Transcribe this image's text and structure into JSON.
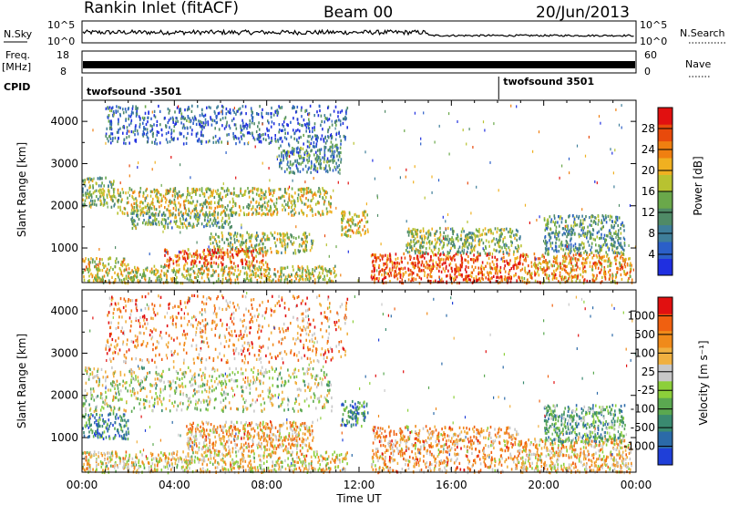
{
  "header": {
    "station": "Rankin Inlet (fitACF)",
    "beam": "Beam 00",
    "date": "20/Jun/2013"
  },
  "strips": {
    "nsky": {
      "label": "N.Sky",
      "ticks": [
        "10^5",
        "10^0"
      ],
      "right_label": "N.Search",
      "right_ticks": [
        "10^5",
        "10^0"
      ]
    },
    "freq": {
      "label_top": "Freq.",
      "label_bottom": "[MHz]",
      "ticks": [
        "18",
        "8"
      ],
      "right_label": "Nave",
      "right_ticks": [
        "60",
        "0"
      ]
    },
    "cpid": {
      "label": "CPID",
      "programs": [
        {
          "name": "twofsound -3501",
          "start_hour": 0.0
        },
        {
          "name": "twofsound 3501",
          "start_hour": 18.05
        }
      ]
    }
  },
  "x_axis": {
    "label": "Time UT",
    "range_hours": [
      0,
      24
    ],
    "tick_labels": [
      "00:00",
      "04:00",
      "08:00",
      "12:00",
      "16:00",
      "20:00",
      "00:00"
    ]
  },
  "chart_data": [
    {
      "type": "heatmap",
      "name": "power",
      "ylabel": "Slant Range [km]",
      "ylim": [
        180,
        4500
      ],
      "y_ticks": [
        1000,
        2000,
        3000,
        4000
      ],
      "colorbar_label": "Power [dB]",
      "colorbar_ticks": [
        "4",
        "8",
        "12",
        "16",
        "20",
        "24",
        "28"
      ],
      "colorbar_colors": [
        "#1f2fe0",
        "#2b5fc8",
        "#3e7e9a",
        "#4f8a66",
        "#6aa84a",
        "#b8c230",
        "#f0b020",
        "#f07f10",
        "#e84a0c",
        "#e11010"
      ],
      "regions": [
        {
          "hours": [
            0.0,
            1.4
          ],
          "range_km": [
            2000,
            2700
          ],
          "level": 0.45
        },
        {
          "hours": [
            1.5,
            10.8
          ],
          "range_km": [
            1800,
            2450
          ],
          "level": 0.55
        },
        {
          "hours": [
            2.0,
            6.5
          ],
          "range_km": [
            1500,
            1850
          ],
          "level": 0.4
        },
        {
          "hours": [
            5.5,
            10.0
          ],
          "range_km": [
            900,
            1400
          ],
          "level": 0.5
        },
        {
          "hours": [
            3.5,
            8.0
          ],
          "range_km": [
            600,
            1000
          ],
          "level": 0.8
        },
        {
          "hours": [
            0.0,
            2.0
          ],
          "range_km": [
            200,
            800
          ],
          "level": 0.6
        },
        {
          "hours": [
            2.0,
            11.0
          ],
          "range_km": [
            200,
            600
          ],
          "level": 0.55
        },
        {
          "hours": [
            11.2,
            12.4
          ],
          "range_km": [
            1300,
            1900
          ],
          "level": 0.6
        },
        {
          "hours": [
            12.5,
            19.0
          ],
          "range_km": [
            200,
            900
          ],
          "level": 0.85
        },
        {
          "hours": [
            14.0,
            19.0
          ],
          "range_km": [
            900,
            1500
          ],
          "level": 0.45
        },
        {
          "hours": [
            19.0,
            23.8
          ],
          "range_km": [
            200,
            900
          ],
          "level": 0.7
        },
        {
          "hours": [
            20.0,
            23.5
          ],
          "range_km": [
            900,
            1800
          ],
          "level": 0.35
        },
        {
          "hours": [
            8.5,
            11.2
          ],
          "range_km": [
            2800,
            3500
          ],
          "level": 0.3
        },
        {
          "hours": [
            1.0,
            11.5
          ],
          "range_km": [
            3500,
            4400
          ],
          "level": 0.2
        }
      ]
    },
    {
      "type": "heatmap",
      "name": "velocity",
      "ylabel": "Slant Range [km]",
      "ylim": [
        180,
        4500
      ],
      "y_ticks": [
        1000,
        2000,
        3000,
        4000
      ],
      "colorbar_label": "Velocity [m s⁻¹]",
      "colorbar_ticks": [
        "1000",
        "500",
        "100",
        "25",
        "-25",
        "-100",
        "-500",
        "-1000"
      ],
      "colorbar_colors": [
        "#1f3fd8",
        "#2b6aa8",
        "#3a8a70",
        "#5aa850",
        "#8ccf3a",
        "#c8c8c8",
        "#f0b040",
        "#f08a1a",
        "#f06010",
        "#e11010"
      ],
      "regions": [
        {
          "hours": [
            0.0,
            10.8
          ],
          "range_km": [
            1650,
            2700
          ],
          "level": 0.5
        },
        {
          "hours": [
            0.0,
            2.0
          ],
          "range_km": [
            1000,
            1600
          ],
          "level": 0.25
        },
        {
          "hours": [
            4.5,
            10.0
          ],
          "range_km": [
            700,
            1400
          ],
          "level": 0.68
        },
        {
          "hours": [
            0.0,
            11.5
          ],
          "range_km": [
            200,
            700
          ],
          "level": 0.6
        },
        {
          "hours": [
            11.2,
            12.4
          ],
          "range_km": [
            1300,
            1900
          ],
          "level": 0.25
        },
        {
          "hours": [
            12.5,
            19.0
          ],
          "range_km": [
            200,
            1300
          ],
          "level": 0.7
        },
        {
          "hours": [
            19.0,
            23.8
          ],
          "range_km": [
            200,
            1000
          ],
          "level": 0.65
        },
        {
          "hours": [
            20.0,
            23.5
          ],
          "range_km": [
            900,
            1800
          ],
          "level": 0.35
        },
        {
          "hours": [
            1.0,
            11.5
          ],
          "range_km": [
            2800,
            4400
          ],
          "level": 0.75
        }
      ]
    }
  ]
}
